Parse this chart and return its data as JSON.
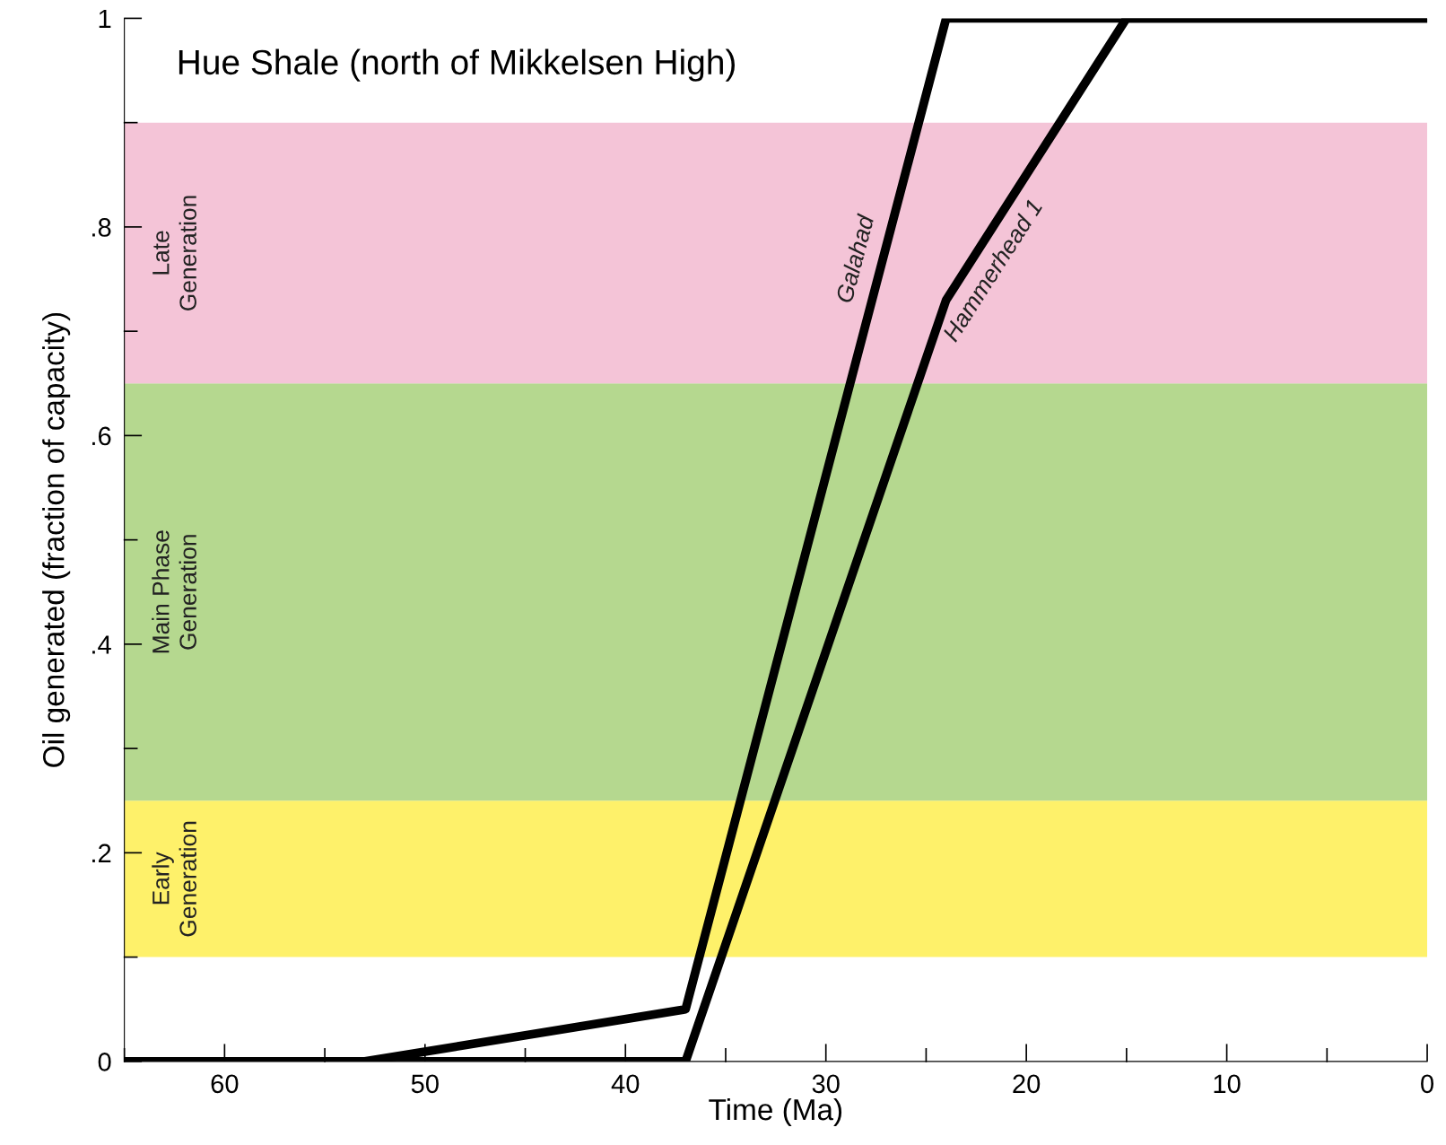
{
  "chart_data": {
    "type": "line",
    "title": "Hue Shale (north of Mikkelsen High)",
    "xlabel": "Time (Ma)",
    "ylabel": "Oil generated (fraction of capacity)",
    "series": [
      {
        "name": "Galahad",
        "color": "#000000",
        "x": [
          65,
          53,
          37,
          24,
          0
        ],
        "values": [
          0,
          0,
          0.05,
          1,
          1
        ]
      },
      {
        "name": "Hammerhead 1",
        "color": "#000000",
        "x": [
          65,
          37,
          24,
          15,
          0
        ],
        "values": [
          0,
          0,
          0.73,
          1,
          1
        ]
      }
    ],
    "bands": [
      {
        "axis": "y",
        "from": 0.1,
        "to": 0.25,
        "label": "Early\nGeneration",
        "color": "#fef16a"
      },
      {
        "axis": "y",
        "from": 0.25,
        "to": 0.65,
        "label": "Main Phase\nGeneration",
        "color": "#b5d88f"
      },
      {
        "axis": "y",
        "from": 0.65,
        "to": 0.9,
        "label": "Late\nGeneration",
        "color": "#f4c4d7"
      }
    ],
    "xlim": [
      65,
      0
    ],
    "xticks": [
      {
        "value": 65,
        "label": null
      },
      60,
      {
        "value": 55,
        "label": null
      },
      50,
      {
        "value": 45,
        "label": null
      },
      40,
      {
        "value": 35,
        "label": null
      },
      30,
      {
        "value": 25,
        "label": null
      },
      20,
      {
        "value": 15,
        "label": null
      },
      10,
      {
        "value": 5,
        "label": null
      },
      0
    ],
    "ylim": [
      0,
      1
    ],
    "yticks": [
      0,
      {
        "value": 0.1,
        "label": null
      },
      {
        "value": 0.2,
        "label": ".2"
      },
      {
        "value": 0.3,
        "label": null
      },
      {
        "value": 0.4,
        "label": ".4"
      },
      {
        "value": 0.5,
        "label": null
      },
      {
        "value": 0.6,
        "label": ".6"
      },
      {
        "value": 0.7,
        "label": null
      },
      {
        "value": 0.8,
        "label": ".8"
      },
      {
        "value": 0.9,
        "label": null
      },
      1
    ],
    "grid": false,
    "legend": false,
    "line_style": "solid",
    "marker": "none"
  }
}
